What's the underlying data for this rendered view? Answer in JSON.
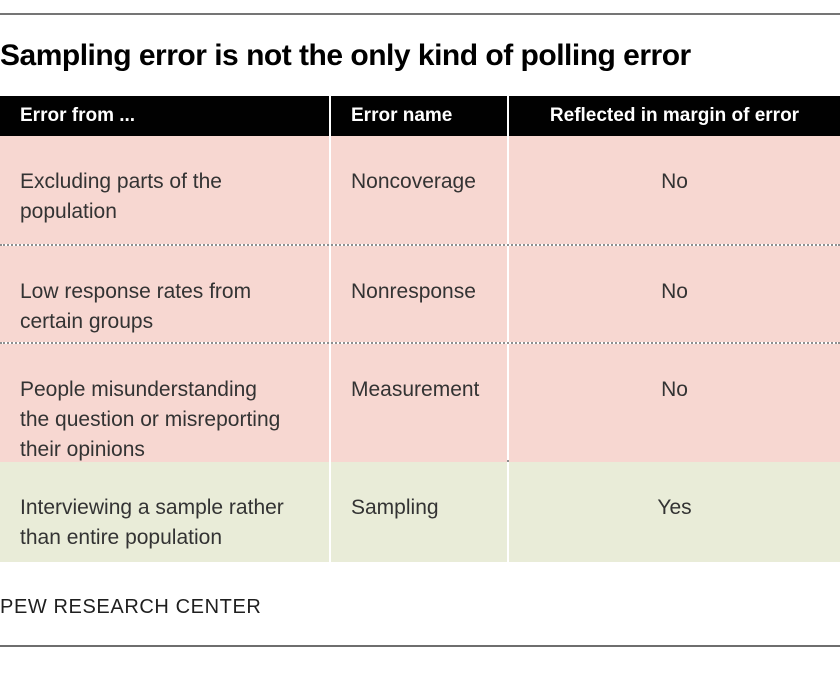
{
  "title": "Sampling error is not the only kind of polling error",
  "table": {
    "columns": [
      {
        "label": "Error from ..."
      },
      {
        "label": "Error name"
      },
      {
        "label": "Reflected in margin of error"
      }
    ],
    "rows": [
      {
        "error_from": "Excluding parts of the\npopulation",
        "error_name": "Noncoverage",
        "reflected": "No",
        "highlight": false
      },
      {
        "error_from": "Low response rates from\ncertain groups",
        "error_name": "Nonresponse",
        "reflected": "No",
        "highlight": false
      },
      {
        "error_from": "People misunderstanding\nthe question or misreporting\ntheir opinions",
        "error_name": "Measurement",
        "reflected": "No",
        "highlight": false
      },
      {
        "error_from": "Interviewing a sample rather\nthan entire population",
        "error_name": "Sampling",
        "reflected": "Yes",
        "highlight": true
      }
    ]
  },
  "footer": {
    "brand": "PEW RESEARCH CENTER"
  },
  "colors": {
    "header_bg": "#010101",
    "header_text": "#ffffff",
    "row_pink": "#f7d7d1",
    "row_green": "#e9ecd8",
    "cell_text": "#333333",
    "dotted_separator": "#8f8f8f",
    "top_rule": "#757575",
    "bottom_rule": "#6e6e6e"
  },
  "chart_data": {
    "type": "table",
    "title": "Sampling error is not the only kind of polling error",
    "columns": [
      "Error from ...",
      "Error name",
      "Reflected in margin of error"
    ],
    "rows": [
      [
        "Excluding parts of the population",
        "Noncoverage",
        "No"
      ],
      [
        "Low response rates from certain groups",
        "Nonresponse",
        "No"
      ],
      [
        "People misunderstanding the question or misreporting their opinions",
        "Measurement",
        "No"
      ],
      [
        "Interviewing a sample rather than entire population",
        "Sampling",
        "Yes"
      ]
    ],
    "highlighted_row": "Interviewing a sample rather than entire population",
    "footer": "PEW RESEARCH CENTER",
    "layout": "black header row; first three body rows pink (#f7d7d1), last row green (#e9ecd8); dotted gray separators between body rows"
  }
}
